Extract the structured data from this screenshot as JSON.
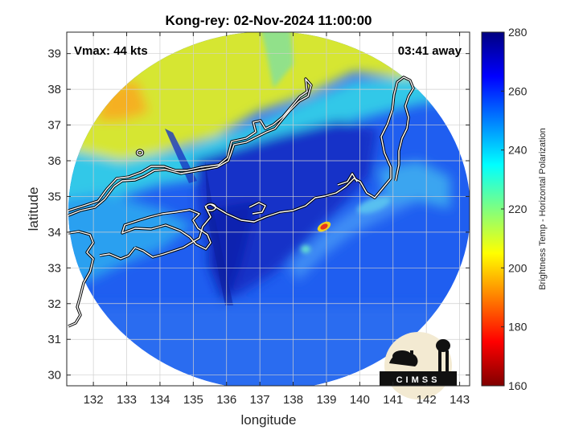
{
  "chart_data": {
    "type": "heatmap",
    "title": "Kong-rey: 02-Nov-2024 11:00:00",
    "xlabel": "longitude",
    "ylabel": "latitude",
    "xlim": [
      131.2,
      143.3
    ],
    "ylim": [
      29.7,
      39.6
    ],
    "x_ticks": [
      132,
      133,
      134,
      135,
      136,
      137,
      138,
      139,
      140,
      141,
      142,
      143
    ],
    "y_ticks": [
      30,
      31,
      32,
      33,
      34,
      35,
      36,
      37,
      38,
      39
    ],
    "grid": true,
    "annotations": {
      "vmax": "Vmax: 44 kts",
      "time_away": "03:41 away"
    },
    "colorbar": {
      "label": "Brightness Temp - Horizontal Polarization",
      "range": [
        160,
        280
      ],
      "ticks": [
        160,
        180,
        200,
        220,
        240,
        260,
        280
      ],
      "colormap": "jet"
    },
    "swath": {
      "center_lon": 137.3,
      "center_lat": 34.3,
      "radius_deg_lat": 4.9
    },
    "storm_center": {
      "lon": 138.9,
      "lat": 34.2,
      "value": 180
    }
  },
  "logo": {
    "text": "CIMSS"
  }
}
